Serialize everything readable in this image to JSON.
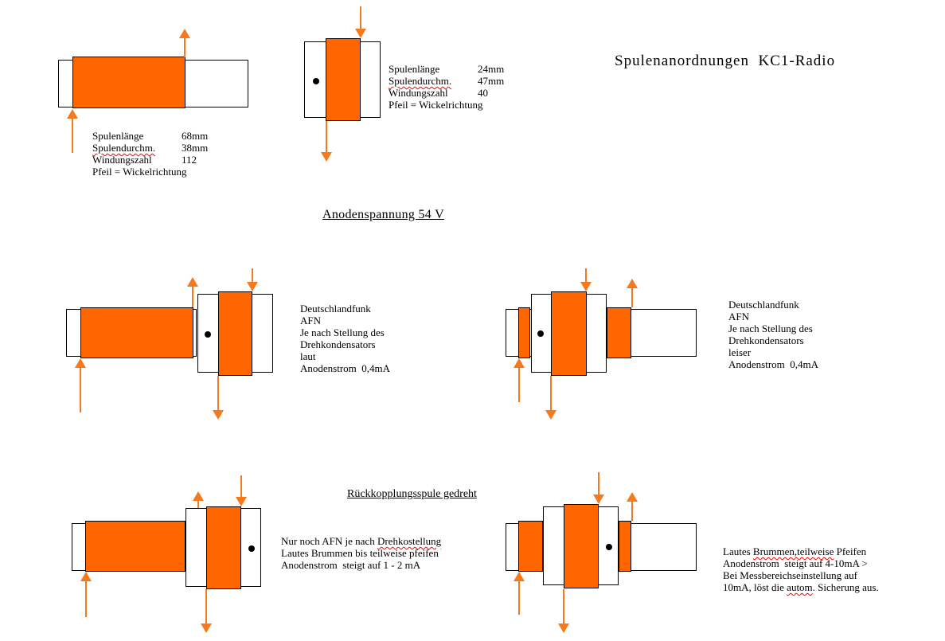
{
  "page": {
    "title": "Spulenanordnungen  KC1-Radio",
    "subtitle": "Anodenspannung 54 V",
    "section_heading": "Rückkopplungsspule gedreht"
  },
  "colors": {
    "winding_fill": "#FF6600",
    "arrow": "#F57A1F",
    "outline": "#000000",
    "spellcheck_underline": "#FF0000"
  },
  "coil_specs": [
    {
      "rows": [
        {
          "label": "Spulenlänge",
          "value": "68mm"
        },
        {
          "label": "Spulendurchm.",
          "value": "38mm",
          "misspelled": true
        },
        {
          "label": "Windungszahl",
          "value": "112"
        },
        {
          "label": "Pfeil = Wickelrichtung",
          "value": ""
        }
      ]
    },
    {
      "rows": [
        {
          "label": "Spulenlänge",
          "value": "24mm"
        },
        {
          "label": "Spulendurchm.",
          "value": "47mm",
          "misspelled": true
        },
        {
          "label": "Windungszahl",
          "value": "40"
        },
        {
          "label": "Pfeil = Wickelrichtung",
          "value": ""
        }
      ]
    }
  ],
  "annotations": {
    "middle_left": [
      [
        {
          "t": "Deutschlandfunk"
        }
      ],
      [
        {
          "t": "AFN"
        }
      ],
      [
        {
          "t": "Je nach Stellung des"
        }
      ],
      [
        {
          "t": "Drehkondensators"
        }
      ],
      [
        {
          "t": "laut"
        }
      ],
      [
        {
          "t": "Anodenstrom  0,4mA"
        }
      ]
    ],
    "middle_right": [
      [
        {
          "t": "Deutschlandfunk"
        }
      ],
      [
        {
          "t": "AFN"
        }
      ],
      [
        {
          "t": "Je nach Stellung des"
        }
      ],
      [
        {
          "t": "Drehkondensators"
        }
      ],
      [
        {
          "t": "leiser"
        }
      ],
      [
        {
          "t": "Anodenstrom  0,4mA"
        }
      ]
    ],
    "bottom_left": [
      [
        {
          "t": "Nur noch AFN je nach "
        },
        {
          "t": "Drehkostellung",
          "misspelled": true
        }
      ],
      [
        {
          "t": "Lautes Brummen bis teilweise pfeifen"
        }
      ],
      [
        {
          "t": "Anodenstrom  steigt auf 1 - 2 mA"
        }
      ]
    ],
    "bottom_right": [
      [
        {
          "t": "Lautes "
        },
        {
          "t": "Brummen,teilweise",
          "misspelled": true
        },
        {
          "t": " Pfeifen"
        }
      ],
      [
        {
          "t": "Anodenstrom  steigt auf 4-10mA >"
        }
      ],
      [
        {
          "t": "Bei Messbereichseinstellung auf"
        }
      ],
      [
        {
          "t": "10mA, löst die "
        },
        {
          "t": "autom",
          "misspelled": true
        },
        {
          "t": ". Sicherung aus."
        }
      ]
    ]
  }
}
